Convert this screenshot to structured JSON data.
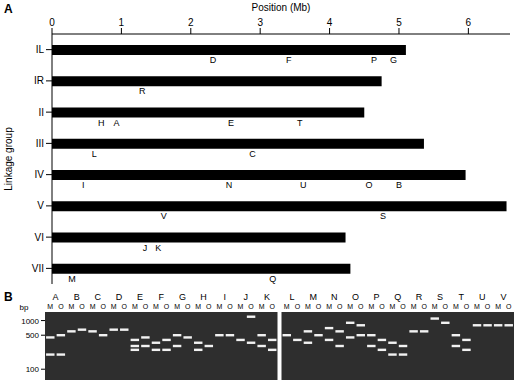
{
  "panel_letters": [
    "A",
    "B"
  ],
  "chart_data": {
    "type": "bar",
    "orientation": "horizontal",
    "xlabel": "Position (Mb)",
    "ylabel": "Linkage group",
    "categories": [
      "IL",
      "IR",
      "II",
      "III",
      "IV",
      "V",
      "VI",
      "VII"
    ],
    "values": [
      5.1,
      4.75,
      4.5,
      5.36,
      5.96,
      6.55,
      4.23,
      4.3
    ],
    "color": "#000000",
    "xlim": [
      0,
      6.6
    ],
    "xticks": [
      0,
      1,
      2,
      3,
      4,
      5,
      6
    ],
    "markers": [
      {
        "label": "D",
        "group": "IL",
        "x": 2.32
      },
      {
        "label": "F",
        "group": "IL",
        "x": 3.41
      },
      {
        "label": "P",
        "group": "IL",
        "x": 4.64
      },
      {
        "label": "G",
        "group": "IL",
        "x": 4.92
      },
      {
        "label": "R",
        "group": "IR",
        "x": 1.3
      },
      {
        "label": "H",
        "group": "II",
        "x": 0.71
      },
      {
        "label": "A",
        "group": "II",
        "x": 0.93
      },
      {
        "label": "E",
        "group": "II",
        "x": 2.58
      },
      {
        "label": "T",
        "group": "II",
        "x": 3.57
      },
      {
        "label": "L",
        "group": "III",
        "x": 0.61
      },
      {
        "label": "C",
        "group": "III",
        "x": 2.89
      },
      {
        "label": "I",
        "group": "IV",
        "x": 0.45
      },
      {
        "label": "N",
        "group": "IV",
        "x": 2.55
      },
      {
        "label": "U",
        "group": "IV",
        "x": 3.62
      },
      {
        "label": "O",
        "group": "IV",
        "x": 4.57
      },
      {
        "label": "B",
        "group": "IV",
        "x": 5.0
      },
      {
        "label": "V",
        "group": "V",
        "x": 1.61
      },
      {
        "label": "S",
        "group": "V",
        "x": 4.77
      },
      {
        "label": "J",
        "group": "VI",
        "x": 1.34
      },
      {
        "label": "K",
        "group": "VI",
        "x": 1.53
      },
      {
        "label": "M",
        "group": "VII",
        "x": 0.29
      },
      {
        "label": "Q",
        "group": "VII",
        "x": 3.18
      }
    ]
  },
  "gel": {
    "axis_label": "bp",
    "log": true,
    "ylim": [
      60,
      1500
    ],
    "yticks": [
      1000,
      500,
      100
    ],
    "lane_labels": [
      "M",
      "O"
    ],
    "lanes": [
      {
        "label": "A",
        "M": [
          450,
          200
        ],
        "O": [
          500,
          200
        ]
      },
      {
        "label": "B",
        "M": [
          600
        ],
        "O": [
          650
        ]
      },
      {
        "label": "C",
        "M": [
          600
        ],
        "O": [
          500
        ]
      },
      {
        "label": "D",
        "M": [
          650
        ],
        "O": [
          650
        ]
      },
      {
        "label": "E",
        "M": [
          400,
          300,
          250
        ],
        "O": [
          450,
          300
        ]
      },
      {
        "label": "F",
        "M": [
          350,
          250
        ],
        "O": [
          400,
          250
        ]
      },
      {
        "label": "G",
        "M": [
          500,
          300
        ],
        "O": [
          450
        ]
      },
      {
        "label": "H",
        "M": [
          350,
          250
        ],
        "O": [
          300
        ]
      },
      {
        "label": "I",
        "M": [
          500
        ],
        "O": [
          500
        ]
      },
      {
        "label": "J",
        "M": [
          400
        ],
        "O": [
          1200,
          350
        ]
      },
      {
        "label": "K",
        "M": [
          500,
          300
        ],
        "O": [
          400,
          250
        ]
      },
      {
        "label": "L",
        "M": [
          500
        ],
        "O": [
          400
        ]
      },
      {
        "label": "M",
        "M": [
          600,
          350
        ],
        "O": [
          500
        ]
      },
      {
        "label": "N",
        "M": [
          700,
          400
        ],
        "O": [
          600,
          300
        ]
      },
      {
        "label": "O",
        "M": [
          900,
          450
        ],
        "O": [
          800,
          500
        ]
      },
      {
        "label": "P",
        "M": [
          500,
          300
        ],
        "O": [
          400,
          250
        ]
      },
      {
        "label": "Q",
        "M": [
          350,
          200
        ],
        "O": [
          300,
          200
        ]
      },
      {
        "label": "R",
        "M": [
          600
        ],
        "O": [
          600
        ]
      },
      {
        "label": "S",
        "M": [
          1100
        ],
        "O": [
          900
        ]
      },
      {
        "label": "T",
        "M": [
          500,
          300
        ],
        "O": [
          400,
          250
        ]
      },
      {
        "label": "U",
        "M": [
          800
        ],
        "O": [
          800
        ]
      },
      {
        "label": "V",
        "M": [
          800
        ],
        "O": [
          800
        ]
      }
    ]
  }
}
